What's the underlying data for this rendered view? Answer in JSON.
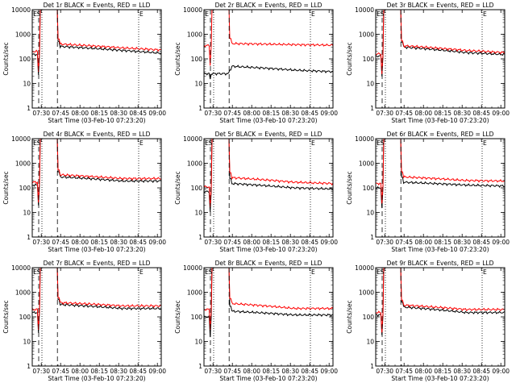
{
  "colors": {
    "events": "#000000",
    "lld": "#ff0000",
    "axes": "#000000",
    "background": "#ffffff"
  },
  "shared": {
    "xlabel": "Start Time (03-Feb-10 07:23:20)",
    "ylabel": "Counts/sec",
    "x_ticks": [
      {
        "t": 7,
        "label": "07:30"
      },
      {
        "t": 22,
        "label": "07:45"
      },
      {
        "t": 37,
        "label": "08:00"
      },
      {
        "t": 52,
        "label": "08:15"
      },
      {
        "t": 67,
        "label": "08:30"
      },
      {
        "t": 82,
        "label": "08:45"
      },
      {
        "t": 97,
        "label": "09:00"
      }
    ],
    "y_ticks": [
      {
        "v": 1,
        "label": "1"
      },
      {
        "v": 10,
        "label": "10"
      },
      {
        "v": 100,
        "label": "100"
      },
      {
        "v": 1000,
        "label": "1000"
      },
      {
        "v": 10000,
        "label": "10000"
      }
    ],
    "x_range_minutes": [
      0,
      100
    ],
    "y_range": [
      1,
      10000
    ],
    "y_scale": "log"
  },
  "chart_data": [
    {
      "type": "line",
      "title": "Det 1r BLACK = Events, RED = LLD",
      "markers": {
        "E": 0.8,
        "S": 3.5,
        "E2": 82.5
      },
      "v_dashed": [
        5,
        19.5
      ],
      "v_dotted": [
        7.5,
        82.5
      ],
      "series": [
        {
          "name": "Events",
          "low": 150,
          "high": 320,
          "mid": 220,
          "end": 170,
          "spike": true
        },
        {
          "name": "LLD",
          "low": 200,
          "high": 400,
          "mid": 280,
          "end": 230,
          "spike": true
        }
      ]
    },
    {
      "type": "line",
      "title": "Det 2r BLACK = Events, RED = LLD",
      "markers": {
        "E": 0.8,
        "E2": 82.5
      },
      "v_dashed": [
        5,
        19.5
      ],
      "v_dotted": [
        7.5,
        82.5
      ],
      "series": [
        {
          "name": "Events",
          "low": 25,
          "high": 50,
          "mid": 35,
          "end": 30,
          "spike": false
        },
        {
          "name": "LLD",
          "low": 350,
          "high": 420,
          "mid": 380,
          "end": 360,
          "spike": true
        }
      ]
    },
    {
      "type": "line",
      "title": "Det 3r BLACK = Events, RED = LLD",
      "markers": {
        "E": 0.8,
        "S": 3.5,
        "E2": 82.5
      },
      "v_dashed": [
        5,
        19.5
      ],
      "v_dotted": [
        7.5,
        82.5
      ],
      "series": [
        {
          "name": "Events",
          "low": 130,
          "high": 300,
          "mid": 180,
          "end": 150,
          "spike": true
        },
        {
          "name": "LLD",
          "low": 160,
          "high": 340,
          "mid": 220,
          "end": 180,
          "spike": true
        }
      ]
    },
    {
      "type": "line",
      "title": "Det 4r BLACK = Events, RED = LLD",
      "markers": {
        "E": 0.8,
        "S": 3.5,
        "E2": 82.5
      },
      "v_dashed": [
        5,
        19.5
      ],
      "v_dotted": [
        7.5,
        82.5
      ],
      "series": [
        {
          "name": "Events",
          "low": 130,
          "high": 280,
          "mid": 190,
          "end": 190,
          "spike": true
        },
        {
          "name": "LLD",
          "low": 170,
          "high": 340,
          "mid": 240,
          "end": 240,
          "spike": true
        }
      ]
    },
    {
      "type": "line",
      "title": "Det 5r BLACK = Events, RED = LLD",
      "markers": {
        "E": 0.8,
        "S": 3.5,
        "E2": 82.5
      },
      "v_dashed": [
        5,
        19.5
      ],
      "v_dotted": [
        7.5,
        82.5
      ],
      "series": [
        {
          "name": "Events",
          "low": 70,
          "high": 150,
          "mid": 100,
          "end": 90,
          "spike": true
        },
        {
          "name": "LLD",
          "low": 110,
          "high": 260,
          "mid": 170,
          "end": 150,
          "spike": true
        }
      ]
    },
    {
      "type": "line",
      "title": "Det 6r BLACK = Events, RED = LLD",
      "markers": {
        "E": 0.8,
        "S": 3.5,
        "E2": 82.5
      },
      "v_dashed": [
        5,
        19.5
      ],
      "v_dotted": [
        7.5,
        82.5
      ],
      "series": [
        {
          "name": "Events",
          "low": 100,
          "high": 170,
          "mid": 130,
          "end": 120,
          "spike": true
        },
        {
          "name": "LLD",
          "low": 150,
          "high": 280,
          "mid": 200,
          "end": 190,
          "spike": true
        }
      ]
    },
    {
      "type": "line",
      "title": "Det 7r BLACK = Events, RED = LLD",
      "markers": {
        "E": 0.8,
        "S": 3.5,
        "E2": 82.5
      },
      "v_dashed": [
        5,
        19.5
      ],
      "v_dotted": [
        7.5,
        82.5
      ],
      "series": [
        {
          "name": "Events",
          "low": 150,
          "high": 320,
          "mid": 220,
          "end": 220,
          "spike": true
        },
        {
          "name": "LLD",
          "low": 200,
          "high": 380,
          "mid": 280,
          "end": 280,
          "spike": true
        }
      ]
    },
    {
      "type": "line",
      "title": "Det 8r BLACK = Events, RED = LLD",
      "markers": {
        "E": 0.8,
        "S": 3.5,
        "E2": 82.5
      },
      "v_dashed": [
        5,
        19.5
      ],
      "v_dotted": [
        7.5,
        82.5
      ],
      "series": [
        {
          "name": "Events",
          "low": 100,
          "high": 170,
          "mid": 120,
          "end": 120,
          "spike": true
        },
        {
          "name": "LLD",
          "low": 200,
          "high": 350,
          "mid": 220,
          "end": 220,
          "spike": true
        }
      ]
    },
    {
      "type": "line",
      "title": "Det 9r BLACK = Events, RED = LLD",
      "markers": {
        "E": 0.8,
        "S": 3.5,
        "E2": 82.5
      },
      "v_dashed": [
        5,
        19.5
      ],
      "v_dotted": [
        7.5,
        82.5
      ],
      "series": [
        {
          "name": "Events",
          "low": 120,
          "high": 250,
          "mid": 150,
          "end": 150,
          "spike": true
        },
        {
          "name": "LLD",
          "low": 150,
          "high": 300,
          "mid": 200,
          "end": 200,
          "spike": true
        }
      ]
    }
  ]
}
